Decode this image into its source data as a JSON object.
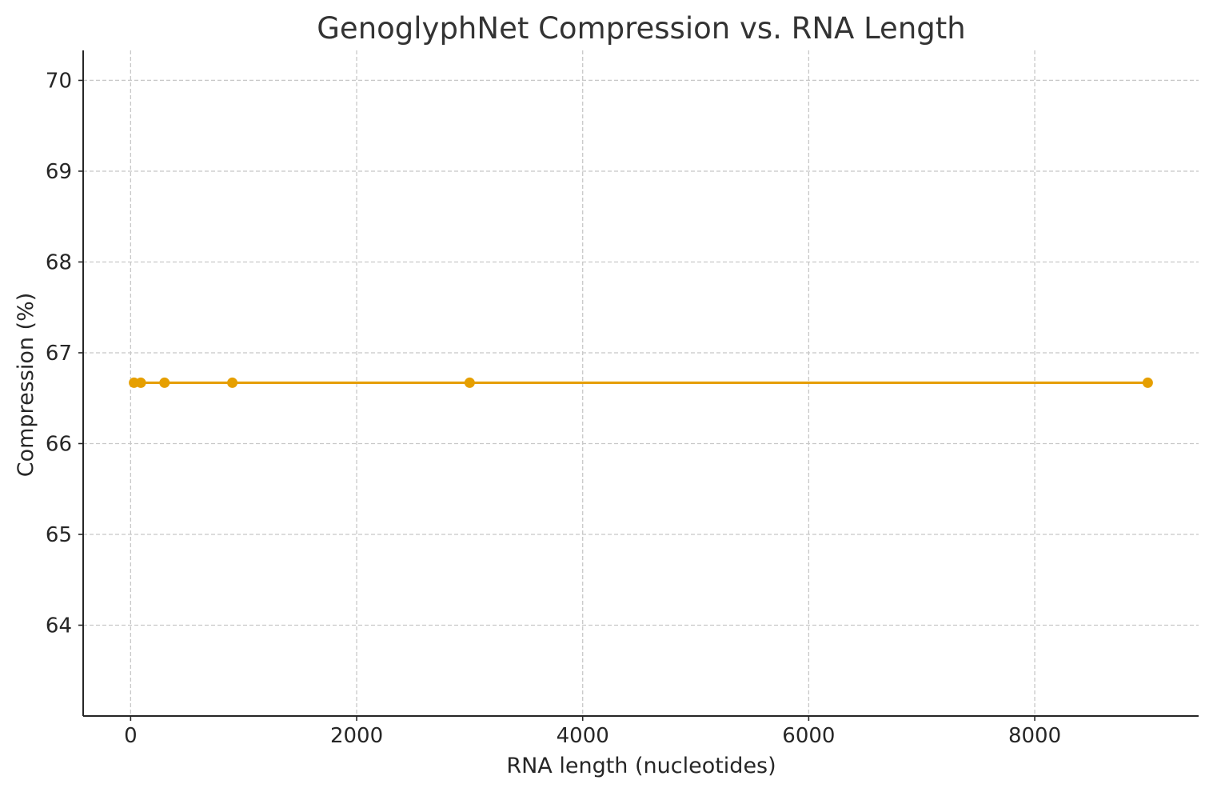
{
  "chart_data": {
    "type": "line",
    "title": "GenoglyphNet Compression vs. RNA Length",
    "xlabel": "RNA length (nucleotides)",
    "ylabel": "Compression (%)",
    "xlim": [
      -420,
      9450
    ],
    "ylim": [
      63.0,
      70.33
    ],
    "xticks": [
      0,
      2000,
      4000,
      6000,
      8000
    ],
    "yticks": [
      64,
      65,
      66,
      67,
      68,
      69,
      70
    ],
    "grid": true,
    "series": [
      {
        "x": [
          30,
          90,
          300,
          900,
          3000,
          9000
        ],
        "y": [
          66.67,
          66.67,
          66.67,
          66.67,
          66.67,
          66.67
        ],
        "color": "#E69F00",
        "marker": "circle"
      }
    ]
  }
}
